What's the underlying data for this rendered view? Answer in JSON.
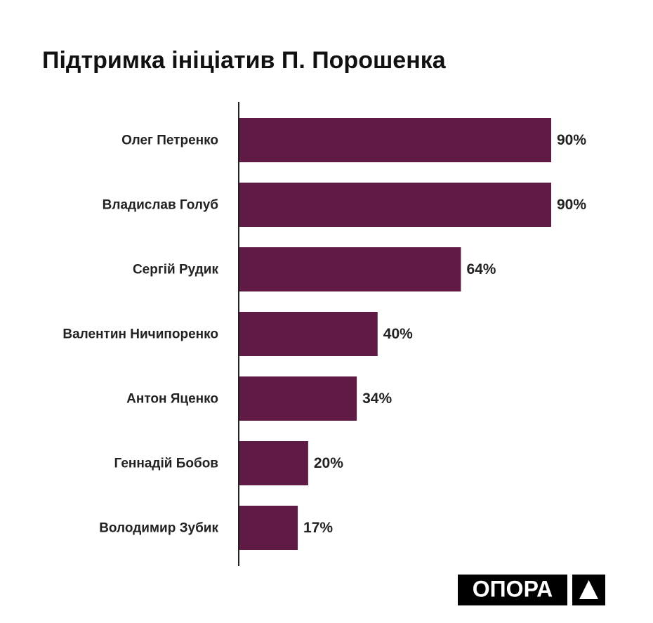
{
  "chart_data": {
    "type": "bar",
    "orientation": "horizontal",
    "title": "Підтримка ініціатив П. Порошенка",
    "categories": [
      "Олег Петренко",
      "Владислав Голуб",
      "Сергій Рудик",
      "Валентин Ничипоренко",
      "Антон Яценко",
      "Геннадій Бобов",
      "Володимир Зубик"
    ],
    "values": [
      90,
      90,
      64,
      40,
      34,
      20,
      17
    ],
    "value_labels": [
      "90%",
      "90%",
      "64%",
      "40%",
      "34%",
      "20%",
      "17%"
    ],
    "color": "#5f1b45"
  },
  "logo": "ОПОРА"
}
